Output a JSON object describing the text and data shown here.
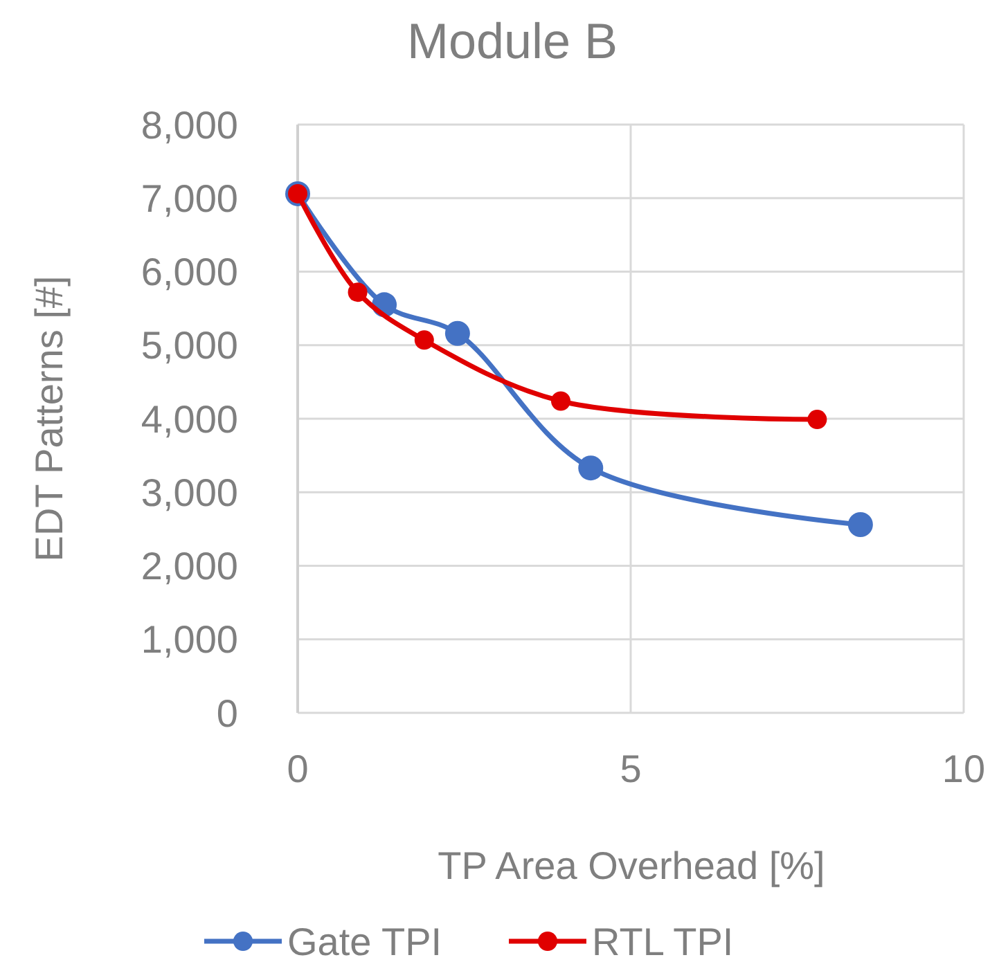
{
  "chart_data": {
    "type": "line",
    "title": "Module B",
    "xlabel": "TP Area Overhead [%]",
    "ylabel": "EDT Patterns [#]",
    "xlim": [
      0,
      10
    ],
    "xticks": [
      0,
      5,
      10
    ],
    "ylim": [
      0,
      8000
    ],
    "yticks": [
      0,
      {
        "value": 1000,
        "label": "1,000"
      },
      {
        "value": 2000,
        "label": "2,000"
      },
      {
        "value": 3000,
        "label": "3,000"
      },
      {
        "value": 4000,
        "label": "4,000"
      },
      {
        "value": 5000,
        "label": "5,000"
      },
      {
        "value": 6000,
        "label": "6,000"
      },
      {
        "value": 7000,
        "label": "7,000"
      },
      {
        "value": 8000,
        "label": "8,000"
      }
    ],
    "grid": true,
    "legend": "bottom",
    "marker": "circle",
    "line_style": "solid",
    "series": [
      {
        "name": "Gate TPI",
        "color": "#4472c4",
        "x": [
          0,
          1.3,
          2.4,
          4.4,
          8.45
        ],
        "values": [
          7060,
          5550,
          5160,
          3330,
          2560
        ]
      },
      {
        "name": "RTL TPI",
        "color": "#e00000",
        "x": [
          0,
          0.9,
          1.9,
          3.95,
          7.8
        ],
        "values": [
          7060,
          5720,
          5070,
          4240,
          3990
        ]
      }
    ]
  }
}
